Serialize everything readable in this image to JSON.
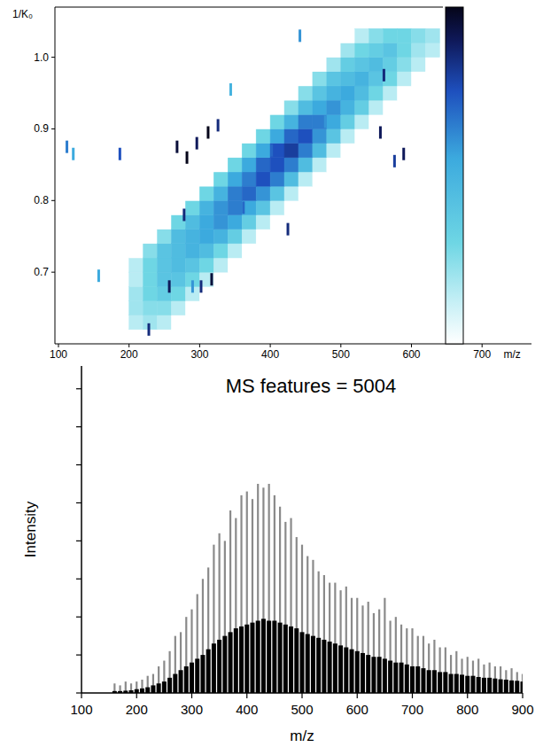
{
  "chart_data": [
    {
      "type": "heatmap",
      "x_label": "m/z",
      "y_label": "1/K₀",
      "xlim": [
        95,
        770
      ],
      "ylim": [
        0.6,
        1.07
      ],
      "xticks": [
        100,
        200,
        300,
        400,
        500,
        600,
        700
      ],
      "yticks": [
        0.7,
        0.8,
        0.9,
        {
          "value": 1,
          "label": "1.0"
        }
      ],
      "zlim": [
        0,
        100
      ],
      "x": [
        210,
        230,
        250,
        270,
        290,
        310,
        330,
        350,
        370,
        390,
        410,
        430,
        450,
        470,
        490,
        510,
        530,
        550,
        570,
        590,
        610,
        630
      ],
      "y": [
        0.63,
        0.65,
        0.67,
        0.69,
        0.71,
        0.73,
        0.75,
        0.77,
        0.79,
        0.81,
        0.83,
        0.85,
        0.87,
        0.89,
        0.91,
        0.93,
        0.95,
        0.97,
        0.99,
        1.01,
        1.03
      ],
      "cells": [
        [
          15,
          20,
          15,
          0,
          0,
          0,
          0,
          0,
          0,
          0,
          0,
          0,
          0,
          0,
          0,
          0,
          0,
          0,
          0,
          0,
          0,
          0
        ],
        [
          20,
          25,
          25,
          15,
          0,
          0,
          0,
          0,
          0,
          0,
          0,
          0,
          0,
          0,
          0,
          0,
          0,
          0,
          0,
          0,
          0,
          0
        ],
        [
          20,
          30,
          35,
          30,
          15,
          0,
          0,
          0,
          0,
          0,
          0,
          0,
          0,
          0,
          0,
          0,
          0,
          0,
          0,
          0,
          0,
          0
        ],
        [
          15,
          30,
          40,
          40,
          30,
          15,
          0,
          0,
          0,
          0,
          0,
          0,
          0,
          0,
          0,
          0,
          0,
          0,
          0,
          0,
          0,
          0
        ],
        [
          15,
          30,
          40,
          45,
          40,
          30,
          15,
          0,
          0,
          0,
          0,
          0,
          0,
          0,
          0,
          0,
          0,
          0,
          0,
          0,
          0,
          0
        ],
        [
          0,
          25,
          40,
          45,
          50,
          45,
          30,
          15,
          0,
          0,
          0,
          0,
          0,
          0,
          0,
          0,
          0,
          0,
          0,
          0,
          0,
          0
        ],
        [
          0,
          0,
          25,
          45,
          50,
          55,
          50,
          35,
          15,
          0,
          0,
          0,
          0,
          0,
          0,
          0,
          0,
          0,
          0,
          0,
          0,
          0
        ],
        [
          0,
          0,
          0,
          30,
          45,
          55,
          60,
          55,
          35,
          15,
          0,
          0,
          0,
          0,
          0,
          0,
          0,
          0,
          0,
          0,
          0,
          0
        ],
        [
          0,
          0,
          0,
          0,
          30,
          50,
          60,
          65,
          55,
          40,
          15,
          0,
          0,
          0,
          0,
          0,
          0,
          0,
          0,
          0,
          0,
          0
        ],
        [
          0,
          0,
          0,
          0,
          0,
          30,
          50,
          65,
          70,
          60,
          40,
          15,
          0,
          0,
          0,
          0,
          0,
          0,
          0,
          0,
          0,
          0
        ],
        [
          0,
          0,
          0,
          0,
          0,
          0,
          30,
          55,
          65,
          75,
          65,
          45,
          15,
          0,
          0,
          0,
          0,
          0,
          0,
          0,
          0,
          0
        ],
        [
          0,
          0,
          0,
          0,
          0,
          0,
          0,
          30,
          55,
          70,
          75,
          65,
          45,
          15,
          0,
          0,
          0,
          0,
          0,
          0,
          0,
          0
        ],
        [
          0,
          0,
          0,
          0,
          0,
          0,
          0,
          0,
          30,
          55,
          75,
          80,
          65,
          45,
          15,
          0,
          0,
          0,
          0,
          0,
          0,
          0
        ],
        [
          0,
          0,
          0,
          0,
          0,
          0,
          0,
          0,
          0,
          30,
          55,
          70,
          75,
          60,
          40,
          15,
          0,
          0,
          0,
          0,
          0,
          0
        ],
        [
          0,
          0,
          0,
          0,
          0,
          0,
          0,
          0,
          0,
          0,
          30,
          50,
          65,
          65,
          55,
          35,
          15,
          0,
          0,
          0,
          0,
          0
        ],
        [
          0,
          0,
          0,
          0,
          0,
          0,
          0,
          0,
          0,
          0,
          0,
          25,
          45,
          55,
          60,
          50,
          35,
          15,
          0,
          0,
          0,
          0
        ],
        [
          0,
          0,
          0,
          0,
          0,
          0,
          0,
          0,
          0,
          0,
          0,
          0,
          25,
          40,
          50,
          55,
          45,
          30,
          15,
          0,
          0,
          0
        ],
        [
          0,
          0,
          0,
          0,
          0,
          0,
          0,
          0,
          0,
          0,
          0,
          0,
          0,
          25,
          40,
          45,
          50,
          40,
          30,
          15,
          0,
          0
        ],
        [
          0,
          0,
          0,
          0,
          0,
          0,
          0,
          0,
          0,
          0,
          0,
          0,
          0,
          0,
          20,
          35,
          40,
          45,
          35,
          25,
          15,
          0
        ],
        [
          0,
          0,
          0,
          0,
          0,
          0,
          0,
          0,
          0,
          0,
          0,
          0,
          0,
          0,
          0,
          20,
          30,
          35,
          40,
          30,
          20,
          15
        ],
        [
          0,
          0,
          0,
          0,
          0,
          0,
          0,
          0,
          0,
          0,
          0,
          0,
          0,
          0,
          0,
          0,
          15,
          25,
          30,
          30,
          25,
          20
        ]
      ],
      "spots": {
        "x": [
          112,
          121,
          157,
          187,
          228,
          257,
          278,
          268,
          282,
          296,
          312,
          326,
          290,
          302,
          317,
          344,
          362,
          402,
          425,
          442,
          478,
          556,
          561,
          576,
          589
        ],
        "y": [
          0.875,
          0.865,
          0.695,
          0.865,
          0.62,
          0.68,
          0.78,
          0.875,
          0.86,
          0.88,
          0.895,
          0.905,
          0.68,
          0.68,
          0.69,
          0.955,
          0.79,
          0.87,
          0.76,
          1.03,
          0.91,
          0.895,
          0.975,
          0.855,
          0.865
        ],
        "values": [
          65,
          55,
          55,
          75,
          85,
          90,
          85,
          95,
          100,
          90,
          100,
          85,
          60,
          85,
          95,
          50,
          70,
          70,
          85,
          60,
          60,
          90,
          85,
          80,
          90
        ]
      }
    },
    {
      "type": "bar",
      "title": "MS features = 5004",
      "x_label": "m/z",
      "y_label": "Intensity",
      "xlim": [
        100,
        900
      ],
      "ylim": [
        0,
        8.6
      ],
      "xticks": [
        100,
        200,
        300,
        400,
        500,
        600,
        700,
        800,
        900
      ],
      "yticks": [
        0,
        1,
        2,
        3,
        4,
        5,
        6,
        7,
        8
      ],
      "tick_labels": "x",
      "stacked": false,
      "x": [
        160,
        170,
        180,
        190,
        200,
        210,
        220,
        230,
        240,
        250,
        260,
        270,
        280,
        290,
        300,
        310,
        320,
        330,
        340,
        350,
        360,
        370,
        380,
        390,
        400,
        410,
        420,
        430,
        440,
        450,
        460,
        470,
        480,
        490,
        500,
        510,
        520,
        530,
        540,
        550,
        560,
        570,
        580,
        590,
        600,
        610,
        620,
        630,
        640,
        650,
        660,
        670,
        680,
        690,
        700,
        710,
        720,
        730,
        740,
        750,
        760,
        770,
        780,
        790,
        800,
        810,
        820,
        830,
        840,
        850,
        860,
        870,
        880,
        890,
        900
      ],
      "series": [
        {
          "color": "#8a8a8a",
          "values": [
            0.25,
            0.2,
            0.3,
            0.25,
            0.3,
            0.35,
            0.45,
            0.5,
            0.7,
            0.85,
            1.1,
            1.5,
            1.6,
            2.0,
            2.2,
            2.6,
            3.0,
            3.3,
            3.9,
            4.2,
            4.0,
            4.8,
            4.6,
            5.2,
            5.3,
            5.1,
            5.5,
            5.4,
            5.5,
            5.2,
            4.9,
            4.5,
            4.6,
            4.1,
            3.9,
            3.6,
            3.5,
            3.2,
            3.1,
            2.9,
            2.9,
            2.7,
            2.8,
            2.5,
            2.5,
            2.3,
            2.4,
            2.1,
            2.2,
            2.5,
            1.9,
            2.0,
            1.8,
            1.7,
            1.7,
            1.5,
            1.5,
            1.3,
            1.4,
            1.2,
            1.2,
            1.0,
            1.1,
            0.9,
            0.95,
            0.85,
            0.9,
            0.75,
            0.8,
            0.7,
            0.7,
            0.6,
            0.65,
            0.55,
            0.5
          ]
        },
        {
          "color": "#000000",
          "values": [
            0.05,
            0.05,
            0.06,
            0.07,
            0.1,
            0.12,
            0.15,
            0.2,
            0.25,
            0.3,
            0.4,
            0.5,
            0.6,
            0.7,
            0.8,
            0.9,
            1.0,
            1.15,
            1.3,
            1.4,
            1.5,
            1.6,
            1.7,
            1.75,
            1.8,
            1.85,
            1.9,
            1.95,
            1.9,
            1.9,
            1.85,
            1.8,
            1.75,
            1.7,
            1.6,
            1.55,
            1.5,
            1.45,
            1.4,
            1.35,
            1.3,
            1.25,
            1.2,
            1.15,
            1.1,
            1.05,
            1.0,
            0.95,
            0.95,
            0.9,
            0.85,
            0.8,
            0.8,
            0.75,
            0.7,
            0.7,
            0.65,
            0.6,
            0.6,
            0.55,
            0.55,
            0.5,
            0.5,
            0.48,
            0.45,
            0.45,
            0.42,
            0.4,
            0.4,
            0.38,
            0.36,
            0.35,
            0.33,
            0.32,
            0.3
          ]
        }
      ]
    }
  ]
}
